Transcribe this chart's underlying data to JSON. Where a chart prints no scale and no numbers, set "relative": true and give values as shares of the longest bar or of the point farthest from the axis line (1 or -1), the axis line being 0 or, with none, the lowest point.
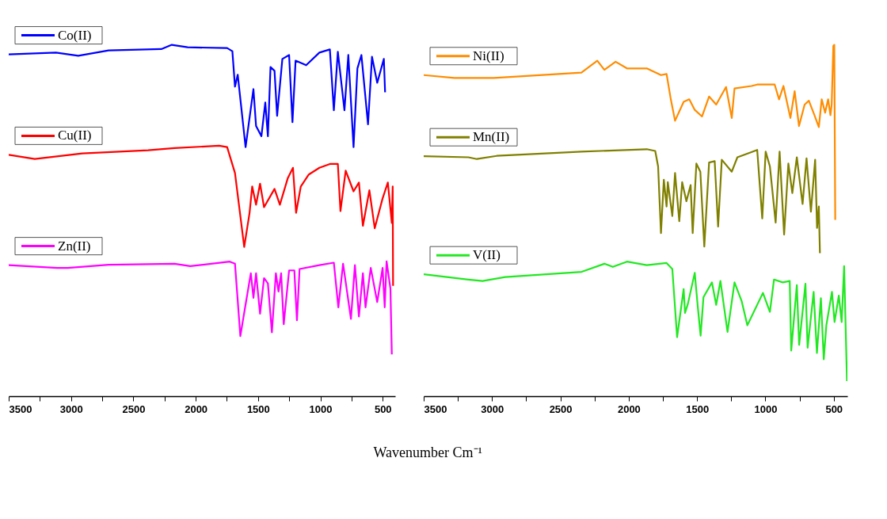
{
  "chart_data": [
    {
      "type": "line",
      "relative": true,
      "xlabel": "Wavenumber Cm⁻¹",
      "xlim": [
        3500,
        400
      ],
      "grid": false,
      "legend": "top left",
      "tick_labels": "x",
      "xticks": [
        3500,
        {
          "value": 3250,
          "label": null
        },
        3000,
        {
          "value": 2750,
          "label": null
        },
        2500,
        {
          "value": 2250,
          "label": null
        },
        2000,
        {
          "value": 1750,
          "label": null
        },
        1500,
        {
          "value": 1250,
          "label": null
        },
        1000,
        {
          "value": 750,
          "label": null
        },
        500
      ],
      "series": [
        {
          "name": "Co(II)",
          "color": "#0000ff",
          "x": [
            3500,
            3121,
            2942,
            2699,
            2276,
            2192,
            2065,
            1748,
            1706,
            1685,
            1663,
            1600,
            1537,
            1516,
            1473,
            1442,
            1421,
            1400,
            1368,
            1347,
            1305,
            1251,
            1224,
            1199,
            1114,
            1008,
            924,
            892,
            860,
            807,
            776,
            734,
            703,
            671,
            618,
            586,
            544,
            491,
            481
          ],
          "values": [
            0.973,
            0.978,
            0.969,
            0.984,
            0.988,
            1.0,
            0.993,
            0.991,
            0.982,
            0.881,
            0.915,
            0.709,
            0.874,
            0.769,
            0.74,
            0.836,
            0.74,
            0.937,
            0.926,
            0.798,
            0.96,
            0.971,
            0.78,
            0.955,
            0.942,
            0.978,
            0.987,
            0.814,
            0.98,
            0.814,
            0.971,
            0.709,
            0.933,
            0.971,
            0.774,
            0.966,
            0.892,
            0.96,
            0.865
          ]
        },
        {
          "name": "Cu(II)",
          "color": "#ff0000",
          "x": [
            3500,
            3291,
            2910,
            2382,
            2170,
            1812,
            1748,
            1685,
            1611,
            1568,
            1547,
            1516,
            1484,
            1452,
            1368,
            1325,
            1262,
            1220,
            1195,
            1157,
            1093,
            1008,
            924,
            860,
            839,
            797,
            734,
            691,
            659,
            607,
            564,
            501,
            459,
            427,
            420,
            417
          ],
          "values": [
            0.687,
            0.675,
            0.691,
            0.7,
            0.706,
            0.713,
            0.709,
            0.635,
            0.425,
            0.522,
            0.597,
            0.545,
            0.605,
            0.538,
            0.59,
            0.545,
            0.62,
            0.65,
            0.522,
            0.597,
            0.631,
            0.65,
            0.661,
            0.661,
            0.527,
            0.642,
            0.583,
            0.608,
            0.485,
            0.586,
            0.478,
            0.563,
            0.608,
            0.493,
            0.597,
            0.314
          ]
        },
        {
          "name": "Zn(II)",
          "color": "#ff00ff",
          "x": [
            3500,
            3111,
            3026,
            2699,
            2170,
            2044,
            1727,
            1685,
            1642,
            1600,
            1558,
            1537,
            1516,
            1484,
            1452,
            1421,
            1389,
            1357,
            1336,
            1315,
            1294,
            1251,
            1209,
            1188,
            1167,
            1008,
            892,
            856,
            818,
            755,
            723,
            691,
            659,
            638,
            596,
            544,
            501,
            484,
            469,
            438,
            427
          ],
          "values": [
            0.373,
            0.365,
            0.365,
            0.374,
            0.377,
            0.37,
            0.383,
            0.377,
            0.171,
            0.261,
            0.35,
            0.28,
            0.35,
            0.235,
            0.336,
            0.321,
            0.182,
            0.35,
            0.298,
            0.35,
            0.205,
            0.358,
            0.358,
            0.216,
            0.362,
            0.373,
            0.38,
            0.253,
            0.377,
            0.22,
            0.373,
            0.227,
            0.35,
            0.253,
            0.365,
            0.268,
            0.365,
            0.253,
            0.384,
            0.306,
            0.119
          ]
        }
      ]
    },
    {
      "type": "line",
      "relative": true,
      "xlim": [
        3500,
        400
      ],
      "grid": false,
      "legend": "top left",
      "tick_labels": "x",
      "xticks": [
        3500,
        {
          "value": 3250,
          "label": null
        },
        3000,
        {
          "value": 2750,
          "label": null
        },
        2500,
        {
          "value": 2250,
          "label": null
        },
        2000,
        {
          "value": 1750,
          "label": null
        },
        1500,
        {
          "value": 1250,
          "label": null
        },
        1000,
        {
          "value": 750,
          "label": null
        },
        500
      ],
      "series": [
        {
          "name": "Ni(II)",
          "color": "#ff8c00",
          "x": [
            3500,
            3276,
            2986,
            2346,
            2230,
            2178,
            2096,
            2013,
            1868,
            1764,
            1723,
            1692,
            1661,
            1598,
            1557,
            1517,
            1464,
            1412,
            1360,
            1288,
            1246,
            1226,
            1101,
            1060,
            932,
            900,
            868,
            817,
            786,
            754,
            713,
            682,
            641,
            609,
            588,
            563,
            541,
            524,
            515,
            503,
            496,
            489
          ],
          "values": [
            0.914,
            0.906,
            0.906,
            0.921,
            0.955,
            0.929,
            0.952,
            0.933,
            0.933,
            0.914,
            0.917,
            0.845,
            0.784,
            0.838,
            0.845,
            0.815,
            0.796,
            0.853,
            0.83,
            0.88,
            0.792,
            0.876,
            0.883,
            0.887,
            0.887,
            0.845,
            0.883,
            0.792,
            0.868,
            0.769,
            0.83,
            0.841,
            0.8,
            0.766,
            0.845,
            0.807,
            0.845,
            0.8,
            0.83,
            0.997,
            1.0,
            0.502
          ]
        },
        {
          "name": "Mn(II)",
          "color": "#808000",
          "x": [
            3500,
            3173,
            3111,
            2966,
            2346,
            1868,
            1806,
            1785,
            1764,
            1743,
            1723,
            1714,
            1681,
            1661,
            1630,
            1609,
            1578,
            1547,
            1532,
            1505,
            1476,
            1447,
            1412,
            1371,
            1346,
            1319,
            1246,
            1205,
            1122,
            1060,
            1023,
            998,
            967,
            925,
            896,
            863,
            832,
            803,
            770,
            728,
            699,
            667,
            636,
            622,
            609,
            601
          ],
          "values": [
            0.683,
            0.68,
            0.675,
            0.684,
            0.696,
            0.703,
            0.698,
            0.654,
            0.464,
            0.616,
            0.54,
            0.609,
            0.513,
            0.635,
            0.498,
            0.609,
            0.555,
            0.601,
            0.464,
            0.662,
            0.639,
            0.426,
            0.665,
            0.669,
            0.483,
            0.673,
            0.639,
            0.68,
            0.692,
            0.701,
            0.506,
            0.696,
            0.654,
            0.494,
            0.696,
            0.46,
            0.662,
            0.578,
            0.68,
            0.547,
            0.677,
            0.525,
            0.673,
            0.479,
            0.54,
            0.407
          ]
        },
        {
          "name": "V(II)",
          "color": "#22e822",
          "x": [
            3500,
            3173,
            3069,
            2903,
            2344,
            2178,
            2116,
            2013,
            1868,
            1723,
            1681,
            1646,
            1598,
            1588,
            1567,
            1517,
            1495,
            1474,
            1453,
            1391,
            1360,
            1329,
            1277,
            1226,
            1174,
            1132,
            1018,
            967,
            937,
            873,
            822,
            811,
            770,
            753,
            707,
            691,
            647,
            623,
            594,
            573,
            554,
            513,
            494,
            463,
            442,
            424,
            403
          ],
          "values": [
            0.347,
            0.332,
            0.328,
            0.339,
            0.354,
            0.377,
            0.368,
            0.383,
            0.373,
            0.379,
            0.362,
            0.168,
            0.305,
            0.237,
            0.263,
            0.351,
            0.256,
            0.172,
            0.282,
            0.324,
            0.26,
            0.328,
            0.183,
            0.324,
            0.271,
            0.202,
            0.294,
            0.24,
            0.332,
            0.324,
            0.328,
            0.13,
            0.316,
            0.146,
            0.32,
            0.138,
            0.297,
            0.123,
            0.279,
            0.105,
            0.202,
            0.297,
            0.211,
            0.286,
            0.211,
            0.37,
            0.043
          ]
        }
      ]
    }
  ]
}
